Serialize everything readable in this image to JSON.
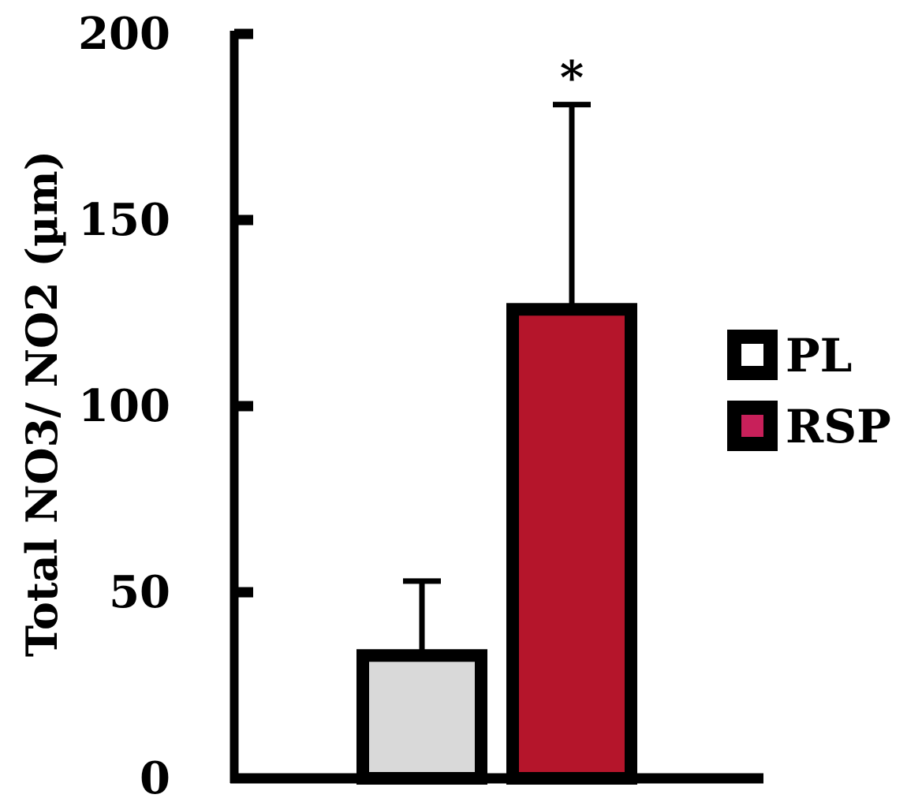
{
  "chart_data": {
    "type": "bar",
    "categories": [
      "PL",
      "RSP"
    ],
    "series": [
      {
        "name": "PL",
        "values": [
          33,
          null
        ],
        "error": [
          20,
          null
        ],
        "color": "#d9d9d9"
      },
      {
        "name": "RSP",
        "values": [
          null,
          126
        ],
        "error": [
          null,
          55
        ],
        "color": "#b5152b"
      }
    ],
    "legend_swatch_colors": {
      "PL": "#ffffff",
      "RSP": "#c8205a"
    },
    "annotations": [
      {
        "category": "RSP",
        "text": "*"
      }
    ],
    "title": "",
    "xlabel": "",
    "ylabel": "Total NO3/ NO2 (µm)",
    "ylim": [
      0,
      200
    ],
    "yticks": [
      0,
      50,
      100,
      150,
      200
    ],
    "grid": false,
    "legend_position": "right"
  }
}
